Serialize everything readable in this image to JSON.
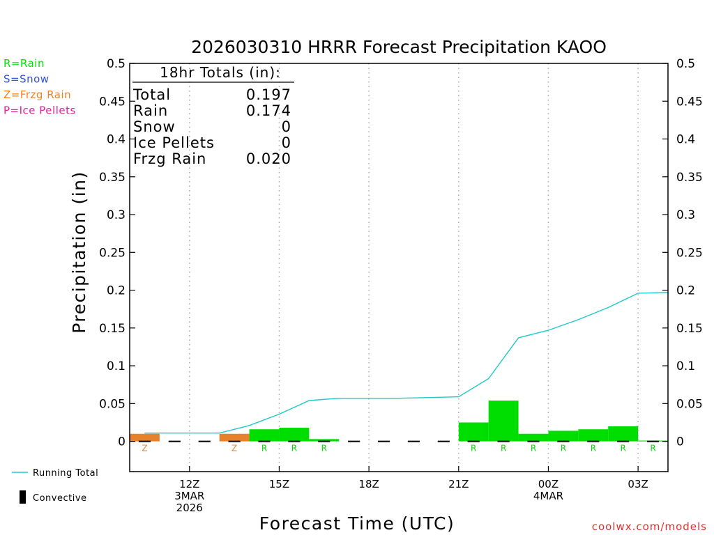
{
  "chart_data": {
    "type": "bar",
    "title": "2026030310 HRRR Forecast Precipitation KAOO",
    "xlabel": "Forecast Time (UTC)",
    "ylabel": "Precipitation (in)",
    "ylim": [
      -0.04,
      0.5
    ],
    "yticks": [
      0,
      0.05,
      0.1,
      0.15,
      0.2,
      0.25,
      0.3,
      0.35,
      0.4,
      0.45,
      0.5
    ],
    "ytick_labels": [
      "0",
      "0.05",
      "0.1",
      "0.15",
      "0.2",
      "0.25",
      "0.3",
      "0.35",
      "0.4",
      "0.45",
      "0.5"
    ],
    "xlim_hours": [
      10,
      28
    ],
    "x_ticks": [
      {
        "hour": 12,
        "lines": [
          "12Z",
          "3MAR",
          "2026"
        ]
      },
      {
        "hour": 15,
        "lines": [
          "15Z"
        ]
      },
      {
        "hour": 18,
        "lines": [
          "18Z"
        ]
      },
      {
        "hour": 21,
        "lines": [
          "21Z"
        ]
      },
      {
        "hour": 24,
        "lines": [
          "00Z",
          "4MAR"
        ]
      },
      {
        "hour": 27,
        "lines": [
          "03Z"
        ]
      }
    ],
    "grid": "vertical dotted at ticks",
    "bars": [
      {
        "hour": 11,
        "value": 0.01,
        "type": "Z"
      },
      {
        "hour": 12,
        "value": 0.0,
        "type": ""
      },
      {
        "hour": 13,
        "value": 0.0,
        "type": ""
      },
      {
        "hour": 14,
        "value": 0.01,
        "type": "Z"
      },
      {
        "hour": 15,
        "value": 0.016,
        "type": "R"
      },
      {
        "hour": 16,
        "value": 0.018,
        "type": "R"
      },
      {
        "hour": 17,
        "value": 0.003,
        "type": "R"
      },
      {
        "hour": 18,
        "value": 0.0,
        "type": ""
      },
      {
        "hour": 19,
        "value": 0.0,
        "type": ""
      },
      {
        "hour": 20,
        "value": 0.0,
        "type": ""
      },
      {
        "hour": 21,
        "value": 0.0,
        "type": ""
      },
      {
        "hour": 22,
        "value": 0.025,
        "type": "R"
      },
      {
        "hour": 23,
        "value": 0.054,
        "type": "R"
      },
      {
        "hour": 24,
        "value": 0.01,
        "type": "R"
      },
      {
        "hour": 25,
        "value": 0.014,
        "type": "R"
      },
      {
        "hour": 26,
        "value": 0.016,
        "type": "R"
      },
      {
        "hour": 27,
        "value": 0.02,
        "type": "R"
      },
      {
        "hour": 28,
        "value": 0.001,
        "type": "R"
      }
    ],
    "running_total": {
      "name": "Running Total",
      "points": [
        [
          10.5,
          0.011
        ],
        [
          11,
          0.011
        ],
        [
          12,
          0.011
        ],
        [
          13,
          0.011
        ],
        [
          14,
          0.021
        ],
        [
          15,
          0.036
        ],
        [
          16,
          0.054
        ],
        [
          17,
          0.057
        ],
        [
          18,
          0.057
        ],
        [
          19,
          0.057
        ],
        [
          20,
          0.058
        ],
        [
          21,
          0.059
        ],
        [
          22,
          0.083
        ],
        [
          23,
          0.137
        ],
        [
          24,
          0.147
        ],
        [
          25,
          0.161
        ],
        [
          26,
          0.177
        ],
        [
          27,
          0.196
        ],
        [
          28,
          0.197
        ]
      ]
    },
    "totals_box": {
      "heading": "18hr Totals (in):",
      "rows": [
        {
          "label": "Total",
          "value": "0.197"
        },
        {
          "label": "Rain",
          "value": "0.174"
        },
        {
          "label": "Snow",
          "value": "0"
        },
        {
          "label": "Ice Pellets",
          "value": "0"
        },
        {
          "label": "Frzg Rain",
          "value": "0.020"
        }
      ]
    },
    "type_legend": [
      {
        "label": "R=Rain",
        "color": "#00e000"
      },
      {
        "label": "S=Snow",
        "color": "#3050e0"
      },
      {
        "label": "Z=Frzg Rain",
        "color": "#f08020"
      },
      {
        "label": "P=Ice Pellets",
        "color": "#e020a0"
      }
    ],
    "line_legend": {
      "running_total_label": "Running Total",
      "convective_label": "Convective"
    },
    "colors": {
      "R": "#00dd00",
      "Z": "#e8822a",
      "line": "#20c8c8",
      "S": "#3050e0",
      "P": "#e020a0"
    },
    "credit": "coolwx.com/models"
  }
}
